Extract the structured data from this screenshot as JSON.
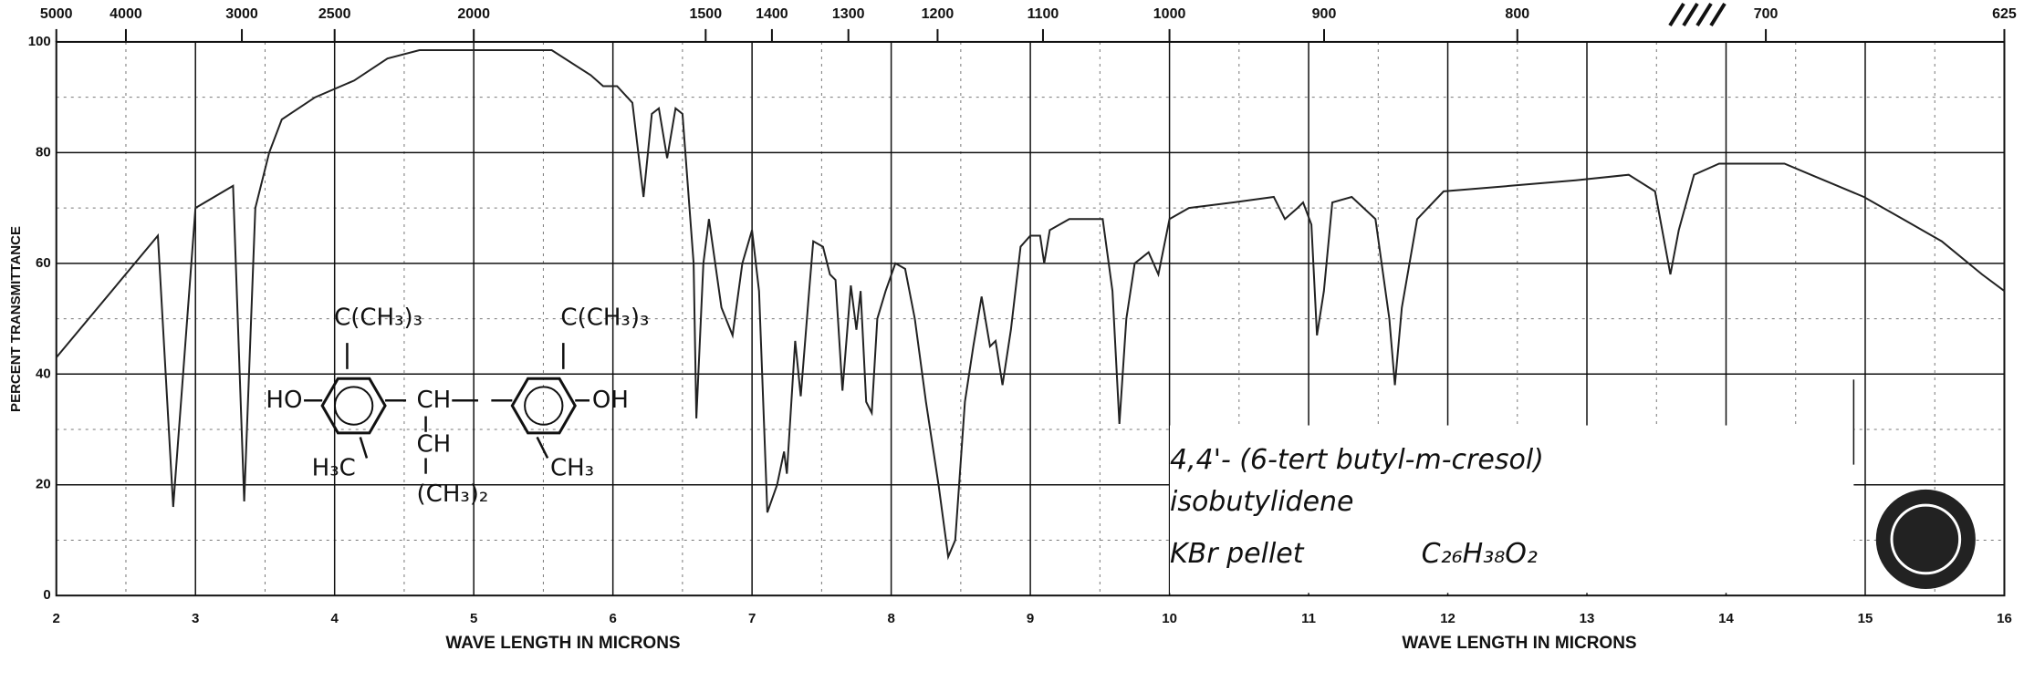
{
  "chart_data": {
    "type": "line",
    "xlabel": "WAVE LENGTH IN MICRONS",
    "ylabel": "PERCENT TRANSMITTANCE",
    "x": [
      2.0,
      2.73,
      2.84,
      3.0,
      3.27,
      3.35,
      3.43,
      3.53,
      3.62,
      3.86,
      4.14,
      4.38,
      4.61,
      5.56,
      5.84,
      5.93,
      6.03,
      6.14,
      6.22,
      6.28,
      6.33,
      6.39,
      6.45,
      6.5,
      6.58,
      6.6,
      6.65,
      6.69,
      6.78,
      6.86,
      6.93,
      7.0,
      7.05,
      7.11,
      7.18,
      7.23,
      7.25,
      7.31,
      7.35,
      7.41,
      7.44,
      7.51,
      7.56,
      7.6,
      7.65,
      7.71,
      7.75,
      7.78,
      7.82,
      7.86,
      7.9,
      7.96,
      8.03,
      8.1,
      8.17,
      8.25,
      8.34,
      8.41,
      8.46,
      8.53,
      8.59,
      8.65,
      8.71,
      8.75,
      8.8,
      8.86,
      8.93,
      9.0,
      9.07,
      9.1,
      9.14,
      9.28,
      9.52,
      9.59,
      9.64,
      9.69,
      9.75,
      9.85,
      9.92,
      10.0,
      10.14,
      10.46,
      10.75,
      10.83,
      10.92,
      10.96,
      11.02,
      11.06,
      11.11,
      11.17,
      11.31,
      11.48,
      11.58,
      11.62,
      11.67,
      11.78,
      11.97,
      12.45,
      12.92,
      13.3,
      13.49,
      13.6,
      13.66,
      13.77,
      13.95,
      14.42,
      14.61,
      14.8,
      14.99,
      15.27,
      15.55,
      15.84,
      16.0
    ],
    "values": [
      43,
      65,
      16,
      70,
      74,
      17,
      70,
      80,
      86,
      90,
      93,
      97,
      98.5,
      98.5,
      94,
      92,
      92,
      89,
      72,
      87,
      88,
      79,
      88,
      87,
      60,
      32,
      60,
      68,
      52,
      47,
      60,
      66,
      55,
      15,
      20,
      26,
      22,
      46,
      36,
      55,
      64,
      63,
      58,
      57,
      37,
      56,
      48,
      55,
      35,
      33,
      50,
      55,
      60,
      59,
      50,
      35,
      20,
      7,
      10,
      35,
      45,
      54,
      45,
      46,
      38,
      48,
      63,
      65,
      65,
      60,
      66,
      68,
      68,
      55,
      31,
      50,
      60,
      62,
      58,
      68,
      70,
      71,
      72,
      68,
      70,
      71,
      67,
      47,
      55,
      71,
      72,
      68,
      50,
      38,
      52,
      68,
      73,
      74,
      75,
      76,
      73,
      58,
      66,
      76,
      78,
      78,
      76,
      74,
      72,
      68,
      64,
      58,
      55
    ],
    "color": "#222222",
    "xlim": [
      2,
      16
    ],
    "ylim": [
      0,
      100
    ],
    "xticks": [
      2,
      3,
      4,
      5,
      6,
      7,
      8,
      9,
      10,
      11,
      12,
      13,
      14,
      15,
      16
    ],
    "yticks": [
      0,
      20,
      40,
      60,
      80,
      100
    ],
    "x2scale": "reciprocal",
    "x2ticks": [
      5000,
      4000,
      3000,
      2500,
      2000,
      1500,
      1400,
      1300,
      1200,
      1100,
      1000,
      900,
      800,
      700,
      625
    ],
    "grid": true,
    "structure_labels": [
      "C(CH₃)₃",
      "HO",
      "CH",
      "CH",
      "(CH₃)₂",
      "H₃C",
      "CH₃",
      "C(CH₃)₃",
      "OH"
    ],
    "note_lines": [
      "4,4'- (6-tert butyl-m-cresol)",
      "isobutylidene",
      "KBr pellet"
    ],
    "formula": "C₂₆H₃₈O₂"
  }
}
